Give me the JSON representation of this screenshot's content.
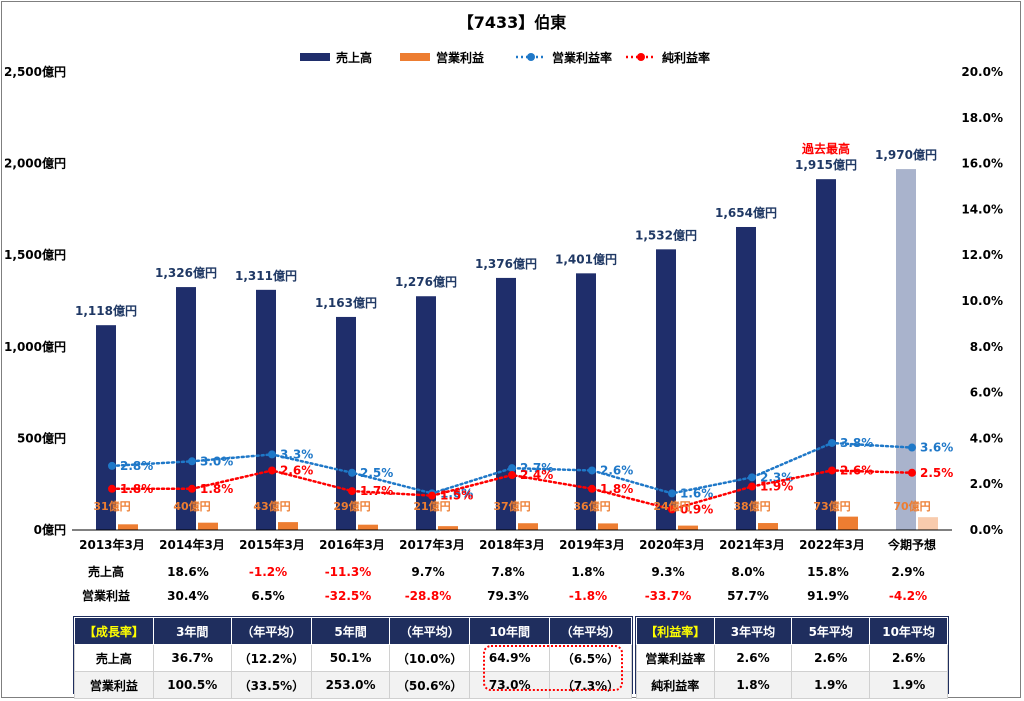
{
  "chart_data": {
    "type": "bar",
    "title": "【7433】伯東",
    "categories": [
      "2013年3月",
      "2014年3月",
      "2015年3月",
      "2016年3月",
      "2017年3月",
      "2018年3月",
      "2019年3月",
      "2020年3月",
      "2021年3月",
      "2022年3月",
      "今期予想"
    ],
    "y_left": {
      "ylim": [
        0,
        2500
      ],
      "ticks": [
        0,
        500,
        1000,
        1500,
        2000,
        2500
      ],
      "tick_labels": [
        "0億円",
        "500億円",
        "1,000億円",
        "1,500億円",
        "2,000億円",
        "2,500億円"
      ]
    },
    "y_right": {
      "ylim": [
        0,
        20
      ],
      "ticks": [
        0,
        2,
        4,
        6,
        8,
        10,
        12,
        14,
        16,
        18,
        20
      ],
      "tick_labels": [
        "0.0%",
        "2.0%",
        "4.0%",
        "6.0%",
        "8.0%",
        "10.0%",
        "12.0%",
        "14.0%",
        "16.0%",
        "18.0%",
        "20.0%"
      ]
    },
    "legend_position": "top-center",
    "series": [
      {
        "name": "売上高",
        "kind": "bar",
        "axis": "left",
        "color": "#1f2e6b",
        "forecast_color": "#a9b3cc",
        "values": [
          1118,
          1326,
          1311,
          1163,
          1276,
          1376,
          1401,
          1532,
          1654,
          1915,
          1970
        ],
        "labels": [
          "1,118億円",
          "1,326億円",
          "1,311億円",
          "1,163億円",
          "1,276億円",
          "1,376億円",
          "1,401億円",
          "1,532億円",
          "1,654億円",
          "1,915億円",
          "1,970億円"
        ]
      },
      {
        "name": "営業利益",
        "kind": "bar",
        "axis": "left",
        "color": "#ed7d31",
        "forecast_color": "#f8cbad",
        "values": [
          31,
          40,
          43,
          29,
          21,
          37,
          36,
          24,
          38,
          73,
          70
        ],
        "labels": [
          "31億円",
          "40億円",
          "43億円",
          "29億円",
          "21億円",
          "37億円",
          "36億円",
          "24億円",
          "38億円",
          "73億円",
          "70億円"
        ]
      },
      {
        "name": "営業利益率",
        "kind": "line",
        "axis": "right",
        "color": "#1f78c8",
        "values": [
          2.8,
          3.0,
          3.3,
          2.5,
          1.6,
          2.7,
          2.6,
          1.6,
          2.3,
          3.8,
          3.6
        ],
        "labels": [
          "2.8%",
          "3.0%",
          "3.3%",
          "2.5%",
          "1.6%",
          "2.7%",
          "2.6%",
          "1.6%",
          "2.3%",
          "3.8%",
          "3.6%"
        ]
      },
      {
        "name": "純利益率",
        "kind": "line",
        "axis": "right",
        "color": "#ff0000",
        "values": [
          1.8,
          1.8,
          2.6,
          1.7,
          1.5,
          2.4,
          1.8,
          0.9,
          1.9,
          2.6,
          2.5
        ],
        "labels": [
          "1.8%",
          "1.8%",
          "2.6%",
          "1.7%",
          "1.5%",
          "2.4%",
          "1.8%",
          "0.9%",
          "1.9%",
          "2.6%",
          "2.5%"
        ]
      }
    ],
    "annotations": [
      {
        "text": "過去最高",
        "category": "2022年3月"
      }
    ],
    "growth_rows": [
      {
        "label": "売上高",
        "values": [
          "18.6%",
          "-1.2%",
          "-11.3%",
          "9.7%",
          "7.8%",
          "1.8%",
          "9.3%",
          "8.0%",
          "15.8%",
          "2.9%"
        ]
      },
      {
        "label": "営業利益",
        "values": [
          "30.4%",
          "6.5%",
          "-32.5%",
          "-28.8%",
          "79.3%",
          "-1.8%",
          "-33.7%",
          "57.7%",
          "91.9%",
          "-4.2%"
        ]
      }
    ]
  },
  "growth_table": {
    "header": [
      "【成長率】",
      "3年間",
      "（年平均）",
      "5年間",
      "（年平均）",
      "10年間",
      "（年平均）"
    ],
    "rows": [
      [
        "売上高",
        "36.7%",
        "（12.2%）",
        "50.1%",
        "（10.0%）",
        "64.9%",
        "（6.5%）"
      ],
      [
        "営業利益",
        "100.5%",
        "（33.5%）",
        "253.0%",
        "（50.6%）",
        "73.0%",
        "（7.3%）"
      ]
    ]
  },
  "margin_table": {
    "header": [
      "【利益率】",
      "3年平均",
      "5年平均",
      "10年平均"
    ],
    "rows": [
      [
        "営業利益率",
        "2.6%",
        "2.6%",
        "2.6%"
      ],
      [
        "純利益率",
        "1.8%",
        "1.9%",
        "1.9%"
      ]
    ]
  }
}
